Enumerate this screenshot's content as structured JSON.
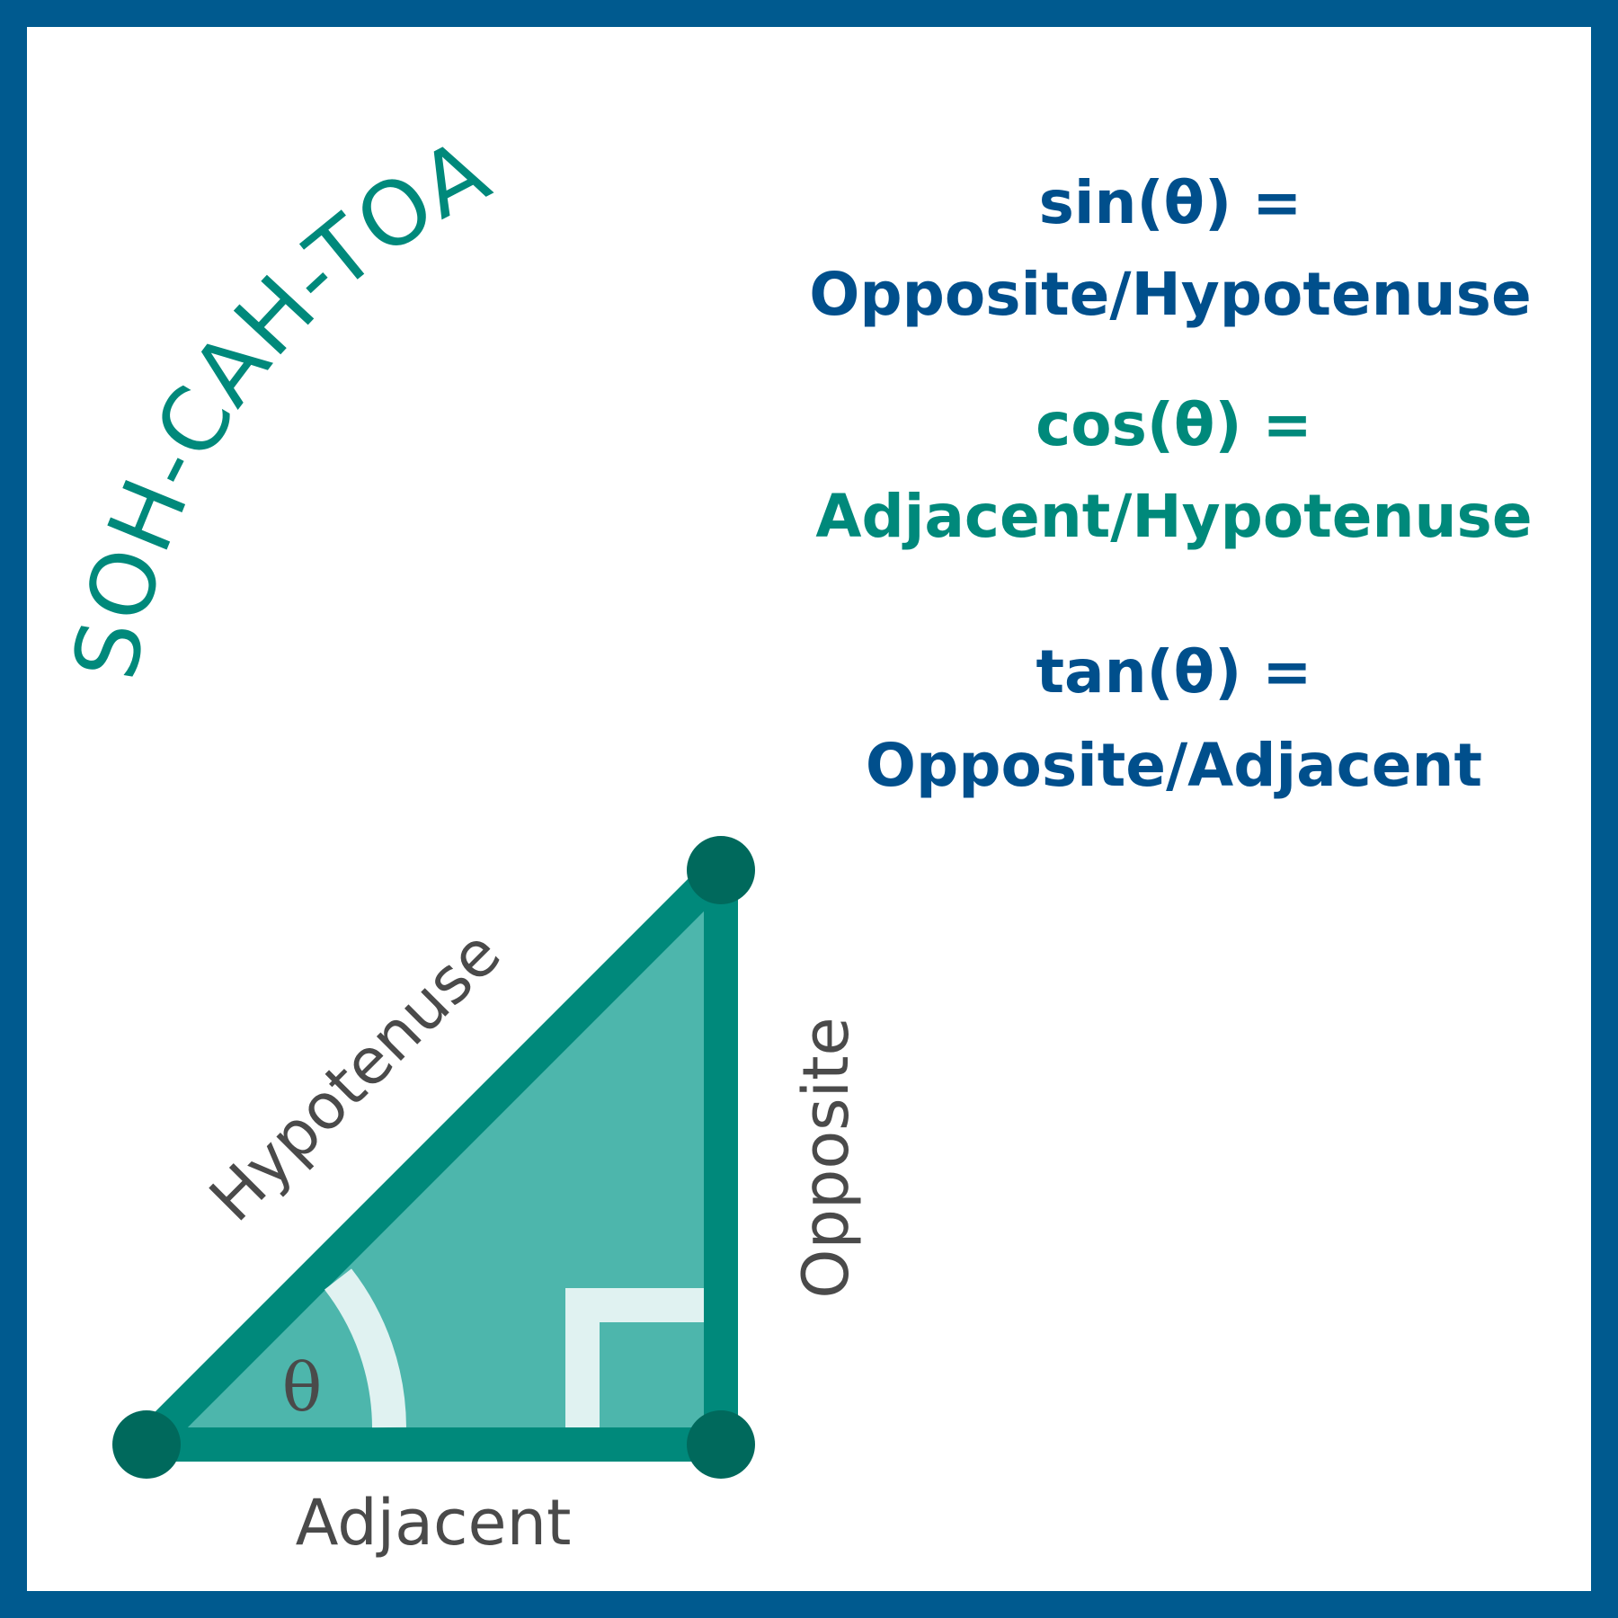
{
  "title": "SOH-CAH-TOA",
  "formulas": {
    "sin": {
      "lhs": "sin(θ) =",
      "rhs": "Opposite/Hypotenuse",
      "color": "#004f8c"
    },
    "cos": {
      "lhs": "cos(θ) =",
      "rhs": "Adjacent/Hypotenuse",
      "color": "#00897b"
    },
    "tan": {
      "lhs": "tan(θ) =",
      "rhs": "Opposite/Adjacent",
      "color": "#004f8c"
    }
  },
  "triangle": {
    "hypotenuse_label": "Hypotenuse",
    "opposite_label": "Opposite",
    "adjacent_label": "Adjacent",
    "angle_label": "θ"
  },
  "colors": {
    "border": "#005a8f",
    "triangle_fill": "#4db6ac",
    "triangle_stroke": "#00897b",
    "vertex": "#00695c",
    "marker": "#e0f2f1"
  }
}
